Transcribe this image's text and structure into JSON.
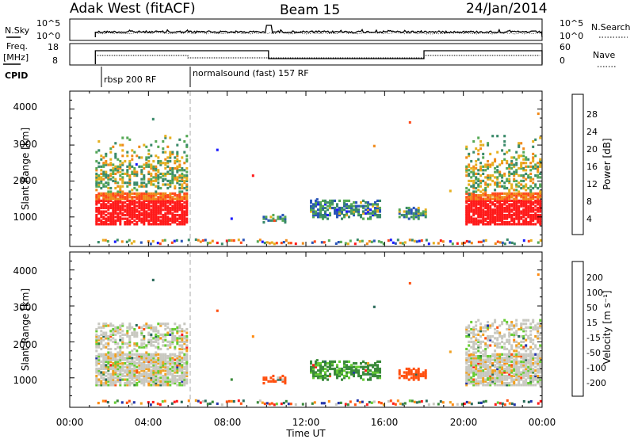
{
  "header": {
    "station": "Adak West (fitACF)",
    "beam": "Beam 15",
    "date": "24/Jan/2014"
  },
  "noise_panel": {
    "left_label": "N.Sky",
    "right_label": "N.Search",
    "left_ticks": [
      "10^5",
      "10^0"
    ],
    "right_ticks": [
      "10^5",
      "10^0"
    ]
  },
  "freq_panel": {
    "left_label_line1": "Freq.",
    "left_label_line2": "[MHz]",
    "right_label": "Nave",
    "left_ticks": [
      "18",
      "8"
    ],
    "right_ticks": [
      "60",
      "0"
    ],
    "cpid_label": "CPID",
    "cpid_modes": [
      {
        "label": "rbsp 200 RF",
        "start_hour": 1.3
      },
      {
        "label": "normalsound (fast) 157 RF",
        "start_hour": 6.0
      }
    ]
  },
  "time_axis": {
    "label": "Time UT",
    "ticks": [
      "00:00",
      "04:00",
      "08:00",
      "12:00",
      "16:00",
      "20:00",
      "00:00"
    ]
  },
  "power_colorbar": {
    "label": "Power [dB]",
    "ticks": [
      "4",
      "8",
      "12",
      "16",
      "20",
      "24",
      "28"
    ],
    "colors": [
      "#1a1aff",
      "#2a55b8",
      "#3a8a6a",
      "#55a855",
      "#e6b020",
      "#f08a1a",
      "#ff4a1a",
      "#ff1a1a"
    ]
  },
  "velocity_colorbar": {
    "label": "Velocity [m s⁻¹]",
    "ticks": [
      "200",
      "100",
      "50",
      "15",
      "-15",
      "-50",
      "-100",
      "-200"
    ],
    "colors": [
      "#2233aa",
      "#2a6a5a",
      "#3a8a3a",
      "#66cc33",
      "#c8c8c0",
      "#f0a020",
      "#ff8a10",
      "#ff5010",
      "#ff1a1a"
    ]
  },
  "chart_data": [
    {
      "type": "heatmap",
      "title": "",
      "ylabel": "Slant Range [km]",
      "xlabel": "Time UT",
      "xlim": [
        0,
        24
      ],
      "ylim": [
        180,
        4500
      ],
      "yticks": [
        "1000",
        "2000",
        "3000",
        "4000"
      ],
      "colorbar": "Power [dB]",
      "echo_regions": [
        {
          "t_start": 1.3,
          "t_end": 6.0,
          "range_min": 800,
          "range_max": 3300,
          "dominant_value_db": 24
        },
        {
          "t_start": 9.8,
          "t_end": 11.0,
          "range_min": 800,
          "range_max": 1100,
          "dominant_value_db": 8
        },
        {
          "t_start": 12.2,
          "t_end": 15.8,
          "range_min": 900,
          "range_max": 1500,
          "dominant_value_db": 8
        },
        {
          "t_start": 16.7,
          "t_end": 18.1,
          "range_min": 900,
          "range_max": 1300,
          "dominant_value_db": 10
        },
        {
          "t_start": 20.1,
          "t_end": 24.0,
          "range_min": 800,
          "range_max": 3300,
          "dominant_value_db": 24
        }
      ]
    },
    {
      "type": "heatmap",
      "title": "",
      "ylabel": "Slant Range [km]",
      "xlabel": "Time UT",
      "xlim": [
        0,
        24
      ],
      "ylim": [
        180,
        4500
      ],
      "yticks": [
        "1000",
        "2000",
        "3000",
        "4000"
      ],
      "colorbar": "Velocity [m s⁻¹]",
      "echo_regions": [
        {
          "t_start": 1.3,
          "t_end": 6.0,
          "range_min": 800,
          "range_max": 2500,
          "dominant_value_ms": 0
        },
        {
          "t_start": 9.8,
          "t_end": 11.0,
          "range_min": 800,
          "range_max": 1100,
          "dominant_value_ms": -100
        },
        {
          "t_start": 12.2,
          "t_end": 15.8,
          "range_min": 900,
          "range_max": 1500,
          "dominant_value_ms": 40
        },
        {
          "t_start": 16.7,
          "t_end": 18.1,
          "range_min": 900,
          "range_max": 1300,
          "dominant_value_ms": -100
        },
        {
          "t_start": 20.1,
          "t_end": 24.0,
          "range_min": 800,
          "range_max": 2600,
          "dominant_value_ms": 0
        }
      ]
    }
  ]
}
